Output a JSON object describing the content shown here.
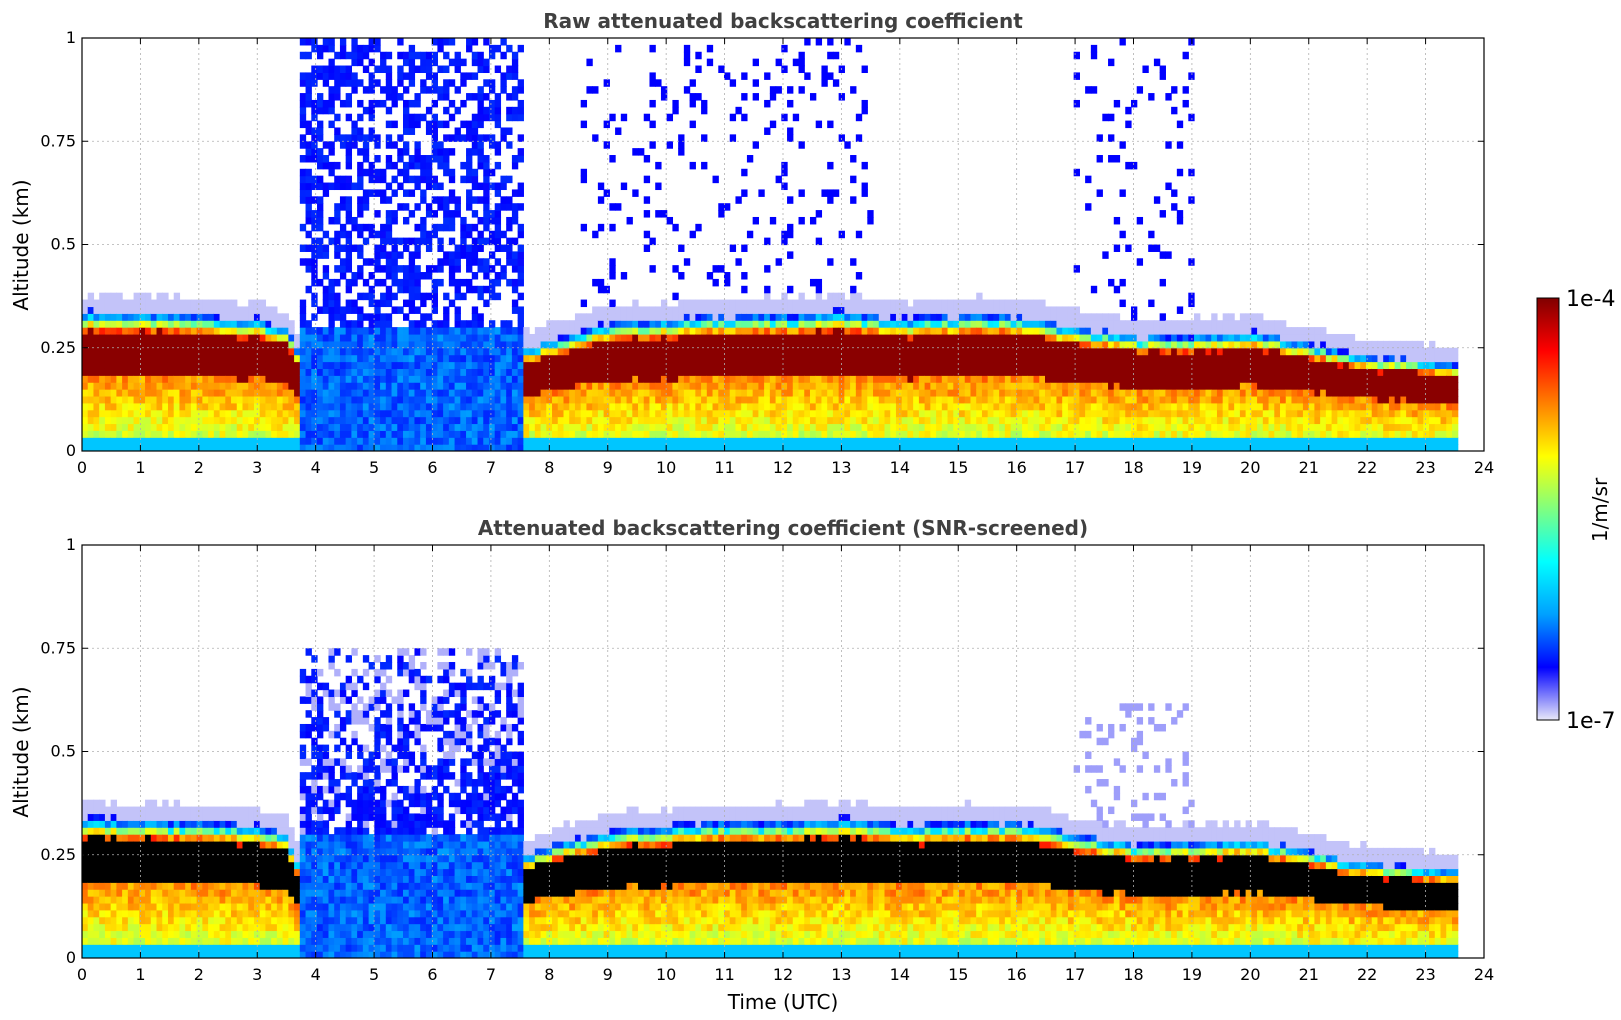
{
  "colors": {
    "jet": [
      "#e8e8f8",
      "#0000ff",
      "#00a0ff",
      "#00ffff",
      "#7fff80",
      "#ffff00",
      "#ff8000",
      "#ff0000",
      "#800000"
    ],
    "saturated": "#000000"
  },
  "chart_data": [
    {
      "type": "heatmap",
      "title": "Raw attenuated backscattering coefficient",
      "xlabel": "",
      "ylabel": "Altitude (km)",
      "xlim": [
        0,
        24
      ],
      "ylim": [
        0,
        1
      ],
      "x_ticks": [
        "0",
        "1",
        "2",
        "3",
        "4",
        "5",
        "6",
        "7",
        "8",
        "9",
        "10",
        "11",
        "12",
        "13",
        "14",
        "15",
        "16",
        "17",
        "18",
        "19",
        "20",
        "21",
        "22",
        "23",
        "24"
      ],
      "y_ticks": [
        "0",
        "0.25",
        "0.5",
        "0.75",
        "1"
      ],
      "grid": true,
      "data_end_hour": 23.55,
      "saturated_color_for_max": false,
      "features": {
        "layer_top_km": [
          [
            0,
            0.34
          ],
          [
            1,
            0.335
          ],
          [
            2,
            0.33
          ],
          [
            3,
            0.32
          ],
          [
            3.5,
            0.3
          ],
          [
            3.75,
            0.22
          ],
          [
            7.6,
            0.25
          ],
          [
            8,
            0.27
          ],
          [
            9,
            0.31
          ],
          [
            10,
            0.32
          ],
          [
            11,
            0.33
          ],
          [
            12,
            0.33
          ],
          [
            13,
            0.34
          ],
          [
            14,
            0.32
          ],
          [
            15,
            0.33
          ],
          [
            16,
            0.33
          ],
          [
            17,
            0.3
          ],
          [
            18,
            0.28
          ],
          [
            19,
            0.28
          ],
          [
            20,
            0.29
          ],
          [
            21,
            0.26
          ],
          [
            22,
            0.23
          ],
          [
            23,
            0.22
          ],
          [
            23.55,
            0.21
          ]
        ],
        "fog_hours": [
          3.75,
          7.6
        ],
        "fog_top_km": 1.0,
        "noise_bursts_hours": [
          [
            8.5,
            13.5
          ],
          [
            17.0,
            19.0
          ]
        ]
      }
    },
    {
      "type": "heatmap",
      "title": "Attenuated backscattering coefficient (SNR-screened)",
      "xlabel": "Time (UTC)",
      "ylabel": "Altitude (km)",
      "xlim": [
        0,
        24
      ],
      "ylim": [
        0,
        1
      ],
      "x_ticks": [
        "0",
        "1",
        "2",
        "3",
        "4",
        "5",
        "6",
        "7",
        "8",
        "9",
        "10",
        "11",
        "12",
        "13",
        "14",
        "15",
        "16",
        "17",
        "18",
        "19",
        "20",
        "21",
        "22",
        "23",
        "24"
      ],
      "y_ticks": [
        "0",
        "0.25",
        "0.5",
        "0.75",
        "1"
      ],
      "grid": true,
      "data_end_hour": 23.55,
      "saturated_color_for_max": true,
      "features": {
        "layer_top_km": [
          [
            0,
            0.34
          ],
          [
            1,
            0.335
          ],
          [
            2,
            0.33
          ],
          [
            3,
            0.32
          ],
          [
            3.5,
            0.3
          ],
          [
            3.75,
            0.22
          ],
          [
            7.6,
            0.25
          ],
          [
            8,
            0.27
          ],
          [
            9,
            0.31
          ],
          [
            10,
            0.32
          ],
          [
            11,
            0.33
          ],
          [
            12,
            0.33
          ],
          [
            13,
            0.34
          ],
          [
            14,
            0.32
          ],
          [
            15,
            0.33
          ],
          [
            16,
            0.33
          ],
          [
            17,
            0.3
          ],
          [
            18,
            0.28
          ],
          [
            19,
            0.28
          ],
          [
            20,
            0.29
          ],
          [
            21,
            0.26
          ],
          [
            22,
            0.23
          ],
          [
            23,
            0.22
          ],
          [
            23.55,
            0.21
          ]
        ],
        "fog_hours": [
          3.75,
          7.6
        ],
        "fog_top_km": 0.75,
        "noise_bursts_hours": [
          [
            17.0,
            19.0
          ]
        ]
      }
    }
  ],
  "colorbar": {
    "label": "1/m/sr",
    "max_label": "1e-4",
    "min_label": "1e-7",
    "scale": "log",
    "range": [
      1e-07,
      0.0001
    ]
  }
}
